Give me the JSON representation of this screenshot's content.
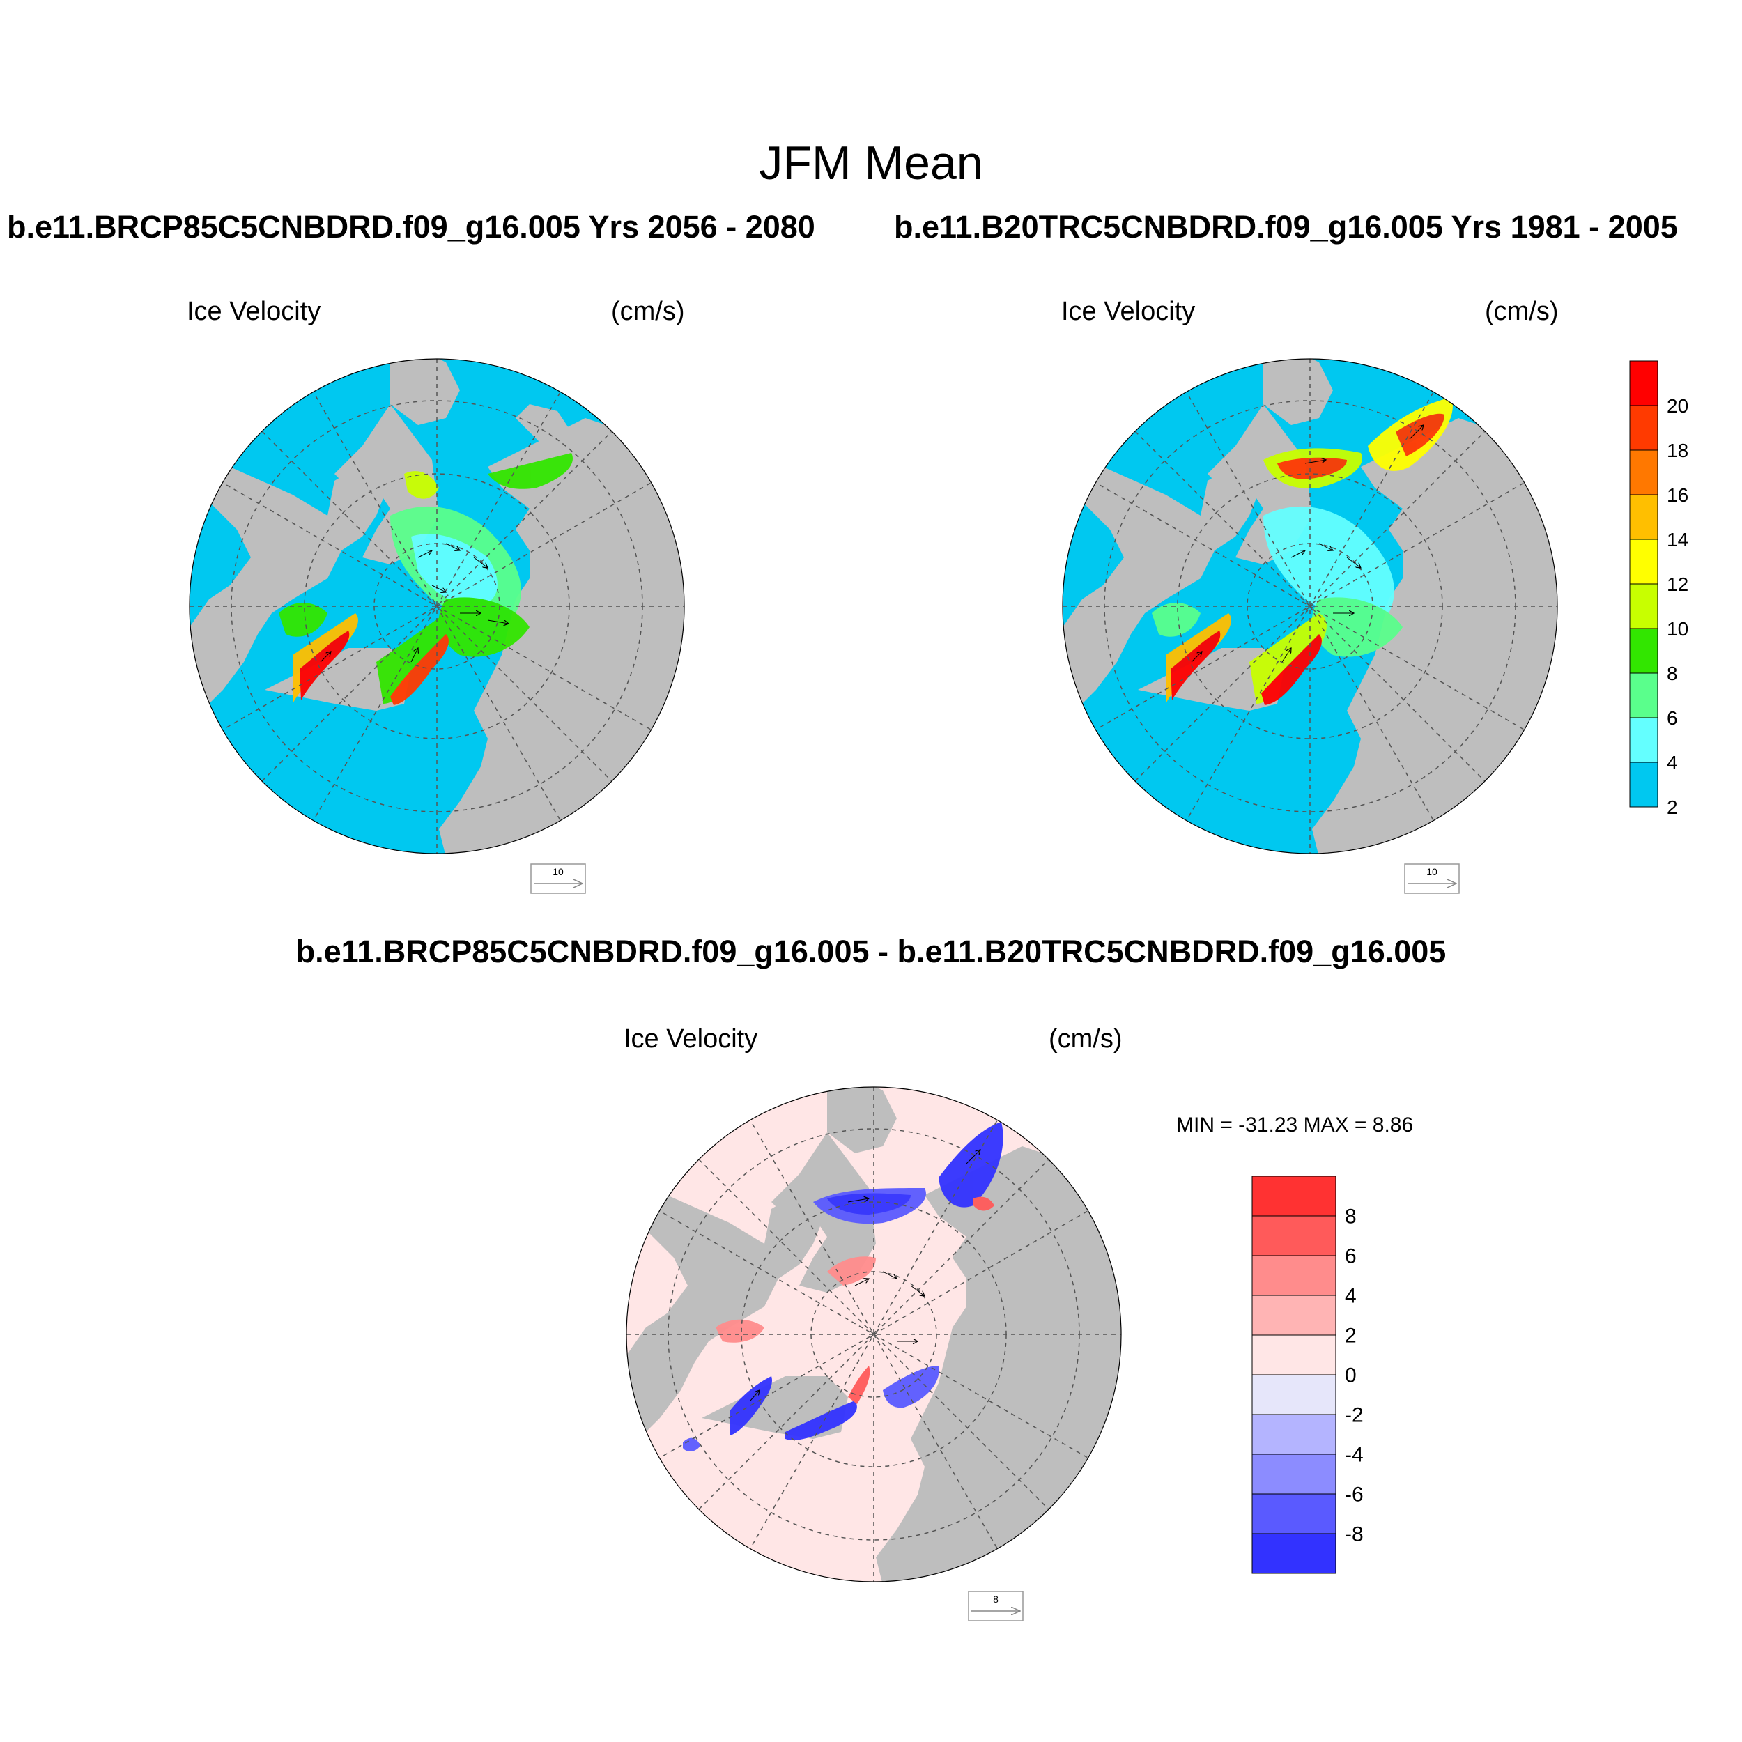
{
  "main_title": "JFM Mean",
  "case1": {
    "title": "b.e11.BRCP85C5CNBDRD.f09_g16.005  Yrs 2056 - 2080",
    "var_label": "Ice Velocity",
    "units_label": "(cm/s)",
    "ref_vector": "10"
  },
  "case2": {
    "title": "b.e11.B20TRC5CNBDRD.f09_g16.005  Yrs 1981 - 2005",
    "var_label": "Ice Velocity",
    "units_label": "(cm/s)",
    "ref_vector": "10"
  },
  "diff": {
    "title": "b.e11.BRCP85C5CNBDRD.f09_g16.005 - b.e11.B20TRC5CNBDRD.f09_g16.005",
    "var_label": "Ice Velocity",
    "units_label": "(cm/s)",
    "ref_vector": "8",
    "minmax": "MIN = -31.23 MAX =   8.86"
  },
  "colorbar_main": {
    "labels": [
      "20",
      "18",
      "16",
      "14",
      "12",
      "10",
      "8",
      "6",
      "4",
      "2"
    ],
    "colors": [
      "#ff0000",
      "#ff3a00",
      "#ff7800",
      "#ffbf00",
      "#ffff00",
      "#c8ff00",
      "#32e600",
      "#5aff8c",
      "#64ffff",
      "#00c8f0"
    ]
  },
  "colorbar_diff": {
    "labels": [
      "8",
      "6",
      "4",
      "2",
      "0",
      "-2",
      "-4",
      "-6",
      "-8"
    ],
    "colors": [
      "#ff3232",
      "#ff5a5a",
      "#ff8c8c",
      "#ffb4b4",
      "#ffe6e6",
      "#e6e6fa",
      "#b4b4ff",
      "#8c8cff",
      "#5a5aff",
      "#3232ff"
    ]
  },
  "map_colors": {
    "land": "#bebebe",
    "ocean_main": "#00c8f0",
    "ocean_diff": "#ffe6e6"
  }
}
